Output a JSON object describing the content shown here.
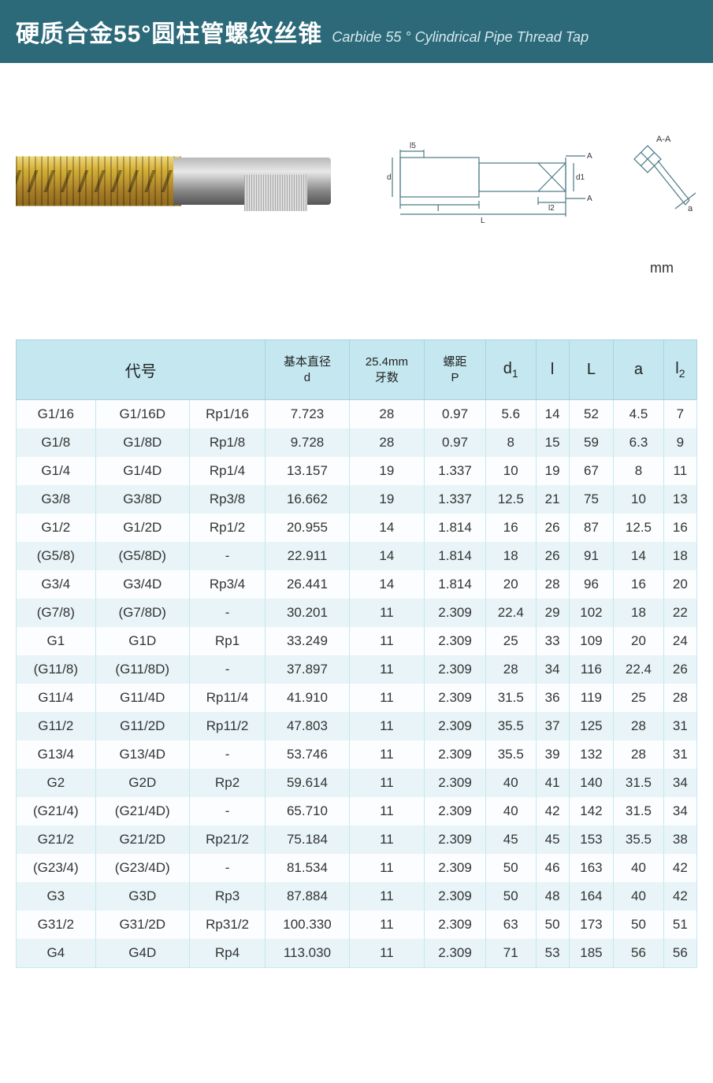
{
  "header": {
    "title_cn": "硬质合金55°圆柱管螺纹丝锥",
    "title_en": "Carbide 55 ° Cylindrical Pipe Thread Tap",
    "bg_color": "#2c6a7a"
  },
  "diagram": {
    "labels": {
      "d": "d",
      "d1": "d1",
      "l5": "l5",
      "l": "l",
      "L": "L",
      "l2": "l2",
      "A": "A",
      "AA": "A-A",
      "a": "a"
    },
    "stroke_color": "#4a7a85"
  },
  "unit": "mm",
  "table": {
    "header_bg": "#c5e8f0",
    "row_odd_bg": "#fbfdfe",
    "row_even_bg": "#e8f4f7",
    "border_color": "#a8d4de",
    "columns": [
      {
        "label": "代号",
        "span": 3
      },
      {
        "label": "基本直径",
        "sub": "d"
      },
      {
        "label": "25.4mm",
        "sub": "牙数"
      },
      {
        "label": "螺距",
        "sub": "P"
      },
      {
        "label": "d",
        "sub": "1"
      },
      {
        "label": "l"
      },
      {
        "label": "L"
      },
      {
        "label": "a"
      },
      {
        "label": "l",
        "sub": "2"
      }
    ],
    "rows": [
      [
        "G1/16",
        "G1/16D",
        "Rp1/16",
        "7.723",
        "28",
        "0.97",
        "5.6",
        "14",
        "52",
        "4.5",
        "7"
      ],
      [
        "G1/8",
        "G1/8D",
        "Rp1/8",
        "9.728",
        "28",
        "0.97",
        "8",
        "15",
        "59",
        "6.3",
        "9"
      ],
      [
        "G1/4",
        "G1/4D",
        "Rp1/4",
        "13.157",
        "19",
        "1.337",
        "10",
        "19",
        "67",
        "8",
        "11"
      ],
      [
        "G3/8",
        "G3/8D",
        "Rp3/8",
        "16.662",
        "19",
        "1.337",
        "12.5",
        "21",
        "75",
        "10",
        "13"
      ],
      [
        "G1/2",
        "G1/2D",
        "Rp1/2",
        "20.955",
        "14",
        "1.814",
        "16",
        "26",
        "87",
        "12.5",
        "16"
      ],
      [
        "(G5/8)",
        "(G5/8D)",
        "-",
        "22.911",
        "14",
        "1.814",
        "18",
        "26",
        "91",
        "14",
        "18"
      ],
      [
        "G3/4",
        "G3/4D",
        "Rp3/4",
        "26.441",
        "14",
        "1.814",
        "20",
        "28",
        "96",
        "16",
        "20"
      ],
      [
        "(G7/8)",
        "(G7/8D)",
        "-",
        "30.201",
        "11",
        "2.309",
        "22.4",
        "29",
        "102",
        "18",
        "22"
      ],
      [
        "G1",
        "G1D",
        "Rp1",
        "33.249",
        "11",
        "2.309",
        "25",
        "33",
        "109",
        "20",
        "24"
      ],
      [
        "(G11/8)",
        "(G11/8D)",
        "-",
        "37.897",
        "11",
        "2.309",
        "28",
        "34",
        "116",
        "22.4",
        "26"
      ],
      [
        "G11/4",
        "G11/4D",
        "Rp11/4",
        "41.910",
        "11",
        "2.309",
        "31.5",
        "36",
        "119",
        "25",
        "28"
      ],
      [
        "G11/2",
        "G11/2D",
        "Rp11/2",
        "47.803",
        "11",
        "2.309",
        "35.5",
        "37",
        "125",
        "28",
        "31"
      ],
      [
        "G13/4",
        "G13/4D",
        "-",
        "53.746",
        "11",
        "2.309",
        "35.5",
        "39",
        "132",
        "28",
        "31"
      ],
      [
        "G2",
        "G2D",
        "Rp2",
        "59.614",
        "11",
        "2.309",
        "40",
        "41",
        "140",
        "31.5",
        "34"
      ],
      [
        "(G21/4)",
        "(G21/4D)",
        "-",
        "65.710",
        "11",
        "2.309",
        "40",
        "42",
        "142",
        "31.5",
        "34"
      ],
      [
        "G21/2",
        "G21/2D",
        "Rp21/2",
        "75.184",
        "11",
        "2.309",
        "45",
        "45",
        "153",
        "35.5",
        "38"
      ],
      [
        "(G23/4)",
        "(G23/4D)",
        "-",
        "81.534",
        "11",
        "2.309",
        "50",
        "46",
        "163",
        "40",
        "42"
      ],
      [
        "G3",
        "G3D",
        "Rp3",
        "87.884",
        "11",
        "2.309",
        "50",
        "48",
        "164",
        "40",
        "42"
      ],
      [
        "G31/2",
        "G31/2D",
        "Rp31/2",
        "100.330",
        "11",
        "2.309",
        "63",
        "50",
        "173",
        "50",
        "51"
      ],
      [
        "G4",
        "G4D",
        "Rp4",
        "113.030",
        "11",
        "2.309",
        "71",
        "53",
        "185",
        "56",
        "56"
      ]
    ]
  }
}
